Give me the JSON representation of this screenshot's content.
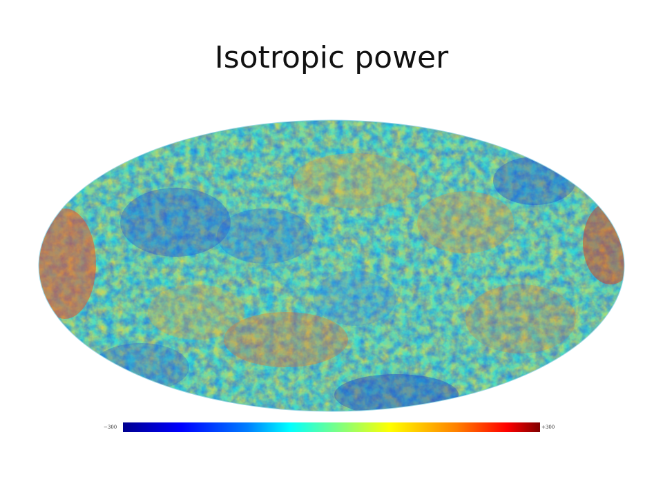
{
  "slide": {
    "title": "Isotropic power"
  },
  "map": {
    "projection": "Mollweide all-sky",
    "palette": [
      "#00008f",
      "#0000ff",
      "#0080ff",
      "#00ffff",
      "#80ff80",
      "#ffff00",
      "#ff8000",
      "#ff0000",
      "#800000"
    ]
  },
  "colorbar": {
    "min_label": "−300",
    "max_label": "+300"
  }
}
